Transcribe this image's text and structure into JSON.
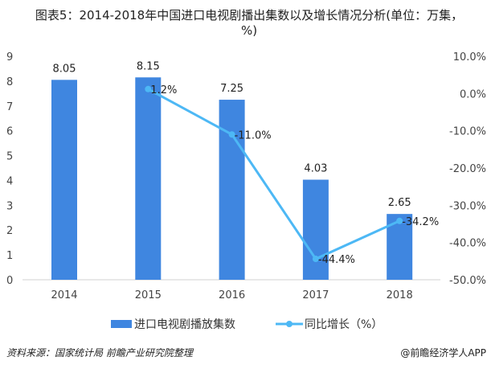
{
  "chart_data": {
    "type": "bar+line",
    "title": "图表5：2014-2018年中国进口电视剧播出集数以及增长情况分析(单位：万集，%)",
    "categories": [
      "2014",
      "2015",
      "2016",
      "2017",
      "2018"
    ],
    "series": [
      {
        "name": "进口电视剧播放集数",
        "type": "bar",
        "axis": "left",
        "color": "#3f86e0",
        "values": [
          8.05,
          8.15,
          7.25,
          4.03,
          2.65
        ],
        "labels": [
          "8.05",
          "8.15",
          "7.25",
          "4.03",
          "2.65"
        ]
      },
      {
        "name": "同比增长（%）",
        "type": "line",
        "axis": "right",
        "color": "#4db8f5",
        "values": [
          null,
          1.2,
          -11.0,
          -44.4,
          -34.2
        ],
        "labels": [
          "",
          "1.2%",
          "-11.0%",
          "-44.4%",
          "-34.2%"
        ]
      }
    ],
    "left_axis": {
      "ylim": [
        0,
        9
      ],
      "ticks": [
        "0",
        "1",
        "2",
        "3",
        "4",
        "5",
        "6",
        "7",
        "8",
        "9"
      ]
    },
    "right_axis": {
      "ylim": [
        -50,
        10
      ],
      "ticks": [
        "10.0%",
        "0.0%",
        "-10.0%",
        "-20.0%",
        "-30.0%",
        "-40.0%",
        "-50.0%"
      ]
    },
    "grid": false,
    "legend_position": "bottom"
  },
  "source": "资料来源：国家统计局 前瞻产业研究院整理",
  "credit": "@前瞻经济学人APP"
}
